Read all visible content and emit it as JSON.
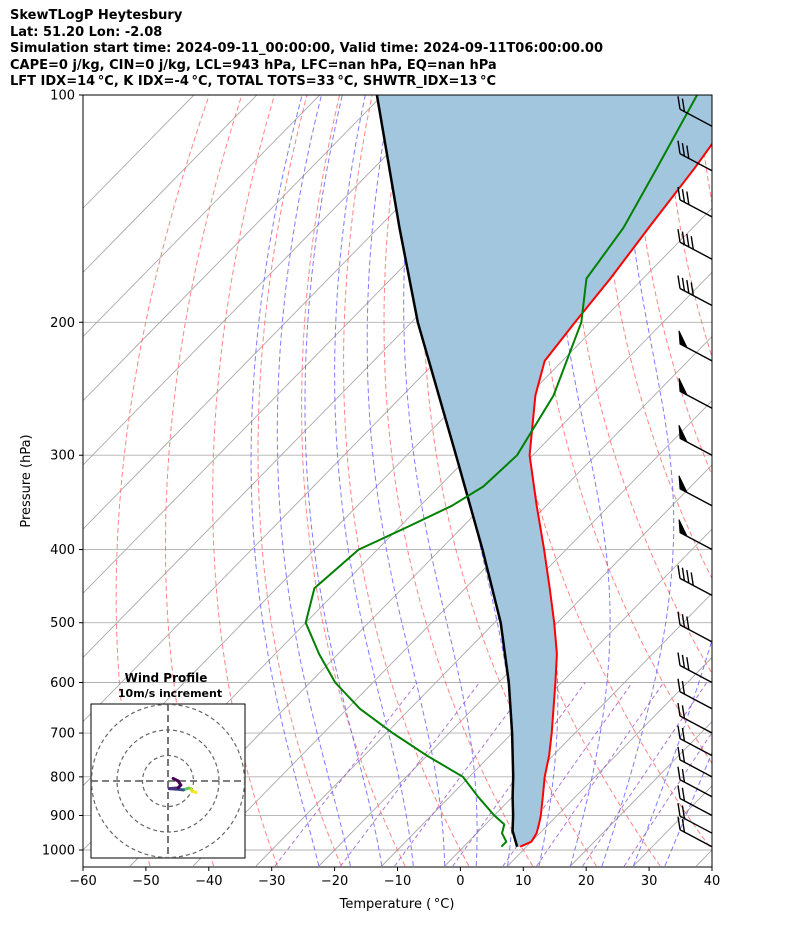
{
  "header": {
    "lines": [
      "SkewTLogP Heytesbury",
      "Lat: 51.20   Lon: -2.08",
      "Simulation start time: 2024-09-11_00:00:00, Valid time: 2024-09-11T06:00:00.00",
      "CAPE=0 j/kg, CIN=0 j/kg, LCL=943 hPa, LFC=nan hPa, EQ=nan hPa",
      "LFT IDX=14$^\\circ$C, K IDX=-4$^\\circ$C, TOTAL TOTS=33$^\\circ$C, SHWTR_IDX=13$^\\circ$C"
    ],
    "display_lines": [
      "SkewTLogP Heytesbury",
      "Lat: 51.20   Lon: -2.08",
      "Simulation start time: 2024-09-11_00:00:00, Valid time: 2024-09-11T06:00:00.00",
      "CAPE=0 j/kg, CIN=0 j/kg, LCL=943 hPa, LFC=nan hPa, EQ=nan hPa",
      "LFT IDX=14 °C, K IDX=-4 °C, TOTAL TOTS=33 °C, SHWTR_IDX=13 °C"
    ]
  },
  "chart_data": {
    "type": "skewt-logp",
    "xlabel": "Temperature ( °C)",
    "ylabel": "Pressure (hPa)",
    "xlim": [
      -60,
      40
    ],
    "ylim": [
      1050,
      100
    ],
    "x_ticks": [
      "−60",
      "−50",
      "−40",
      "−30",
      "−20",
      "−10",
      "0",
      "10",
      "20",
      "30",
      "40"
    ],
    "x_tick_values": [
      -60,
      -50,
      -40,
      -30,
      -20,
      -10,
      0,
      10,
      20,
      30,
      40
    ],
    "y_ticks": [
      "100",
      "200",
      "300",
      "400",
      "500",
      "600",
      "700",
      "800",
      "900",
      "1000"
    ],
    "y_tick_values": [
      100,
      200,
      300,
      400,
      500,
      600,
      700,
      800,
      900,
      1000
    ],
    "y_scale": "log",
    "grid": true,
    "colors": {
      "temperature": "#ff0000",
      "dewpoint": "#008000",
      "parcel": "#000000",
      "shade": "#a3c6df",
      "dry_adiabat": "#ff6666",
      "moist_adiabat": "#6666ff",
      "mixing_ratio": "#9955cc",
      "isotherm": "#aaaaaa"
    },
    "temperature": {
      "p": [
        990,
        975,
        950,
        925,
        900,
        850,
        800,
        750,
        700,
        650,
        600,
        550,
        500,
        450,
        400,
        350,
        300,
        250,
        225,
        200,
        175,
        150,
        125,
        100
      ],
      "t": [
        9.0,
        10.0,
        9.5,
        8.5,
        7.4,
        4.8,
        2.0,
        -0.6,
        -3.7,
        -7.2,
        -11.0,
        -15.2,
        -20.5,
        -26.6,
        -33.5,
        -41.5,
        -50.5,
        -58.9,
        -62.8,
        -64.0,
        -65.2,
        -67.0,
        -69.0,
        -72.0
      ]
    },
    "dewpoint": {
      "p": [
        990,
        975,
        950,
        925,
        900,
        850,
        800,
        750,
        700,
        650,
        600,
        550,
        500,
        450,
        400,
        375,
        350,
        330,
        300,
        250,
        200,
        175,
        150,
        125,
        100
      ],
      "td": [
        6.0,
        6.0,
        4.0,
        3.0,
        0.0,
        -5.5,
        -11.0,
        -20.0,
        -29.0,
        -38.0,
        -46.0,
        -53.0,
        -60.0,
        -64.0,
        -63.0,
        -59.0,
        -55.0,
        -53.0,
        -52.5,
        -56.0,
        -63.0,
        -69.0,
        -71.0,
        -75.0,
        -80.0
      ]
    },
    "parcel": {
      "p": [
        990,
        943,
        900,
        850,
        800,
        700,
        600,
        500,
        400,
        300,
        200,
        150,
        100
      ],
      "t": [
        8.5,
        5.3,
        3.0,
        0.0,
        -3.0,
        -10.0,
        -18.4,
        -29.0,
        -43.3,
        -62.2,
        -89.0,
        -106.6,
        -130.9
      ]
    },
    "wind_barbs": [
      {
        "p": 990,
        "symbol": "barb",
        "count": 2
      },
      {
        "p": 950,
        "symbol": "barb",
        "count": 2
      },
      {
        "p": 900,
        "symbol": "barb",
        "count": 2
      },
      {
        "p": 850,
        "symbol": "barb",
        "count": 2
      },
      {
        "p": 800,
        "symbol": "barb",
        "count": 2
      },
      {
        "p": 750,
        "symbol": "barb",
        "count": 2
      },
      {
        "p": 700,
        "symbol": "barb",
        "count": 2
      },
      {
        "p": 650,
        "symbol": "barb",
        "count": 2
      },
      {
        "p": 600,
        "symbol": "barb",
        "count": 3
      },
      {
        "p": 530,
        "symbol": "barb",
        "count": 3
      },
      {
        "p": 460,
        "symbol": "barb",
        "count": 4
      },
      {
        "p": 400,
        "symbol": "pennant",
        "count": 1
      },
      {
        "p": 350,
        "symbol": "pennant",
        "count": 1
      },
      {
        "p": 300,
        "symbol": "pennant",
        "count": 1
      },
      {
        "p": 260,
        "symbol": "pennant",
        "count": 1
      },
      {
        "p": 225,
        "symbol": "pennant",
        "count": 1
      },
      {
        "p": 190,
        "symbol": "barb",
        "count": 4
      },
      {
        "p": 165,
        "symbol": "barb",
        "count": 4
      },
      {
        "p": 145,
        "symbol": "barb",
        "count": 3
      },
      {
        "p": 126,
        "symbol": "barb",
        "count": 3
      },
      {
        "p": 110,
        "symbol": "barb",
        "count": 2
      }
    ],
    "inset": {
      "title": "Wind Profile",
      "subtitle": "10m/s increment",
      "rings": [
        10,
        20,
        30
      ],
      "hodograph": [
        {
          "u": 11.0,
          "v": -4.5,
          "c": "#fde725"
        },
        {
          "u": 9.5,
          "v": -4.0,
          "c": "#e4e419"
        },
        {
          "u": 9.0,
          "v": -3.0,
          "c": "#c2df23"
        },
        {
          "u": 8.0,
          "v": -2.8,
          "c": "#5ec962"
        },
        {
          "u": 6.0,
          "v": -3.5,
          "c": "#3b528b"
        },
        {
          "u": 3.0,
          "v": -3.2,
          "c": "#414487"
        },
        {
          "u": 0.5,
          "v": -3.0,
          "c": "#46327e"
        },
        {
          "u": 4.0,
          "v": -2.7,
          "c": "#440154"
        },
        {
          "u": 5.0,
          "v": -1.6,
          "c": "#440154"
        },
        {
          "u": 4.0,
          "v": 0.0,
          "c": "#440154"
        },
        {
          "u": 2.0,
          "v": 1.0,
          "c": "#440154"
        }
      ]
    }
  }
}
